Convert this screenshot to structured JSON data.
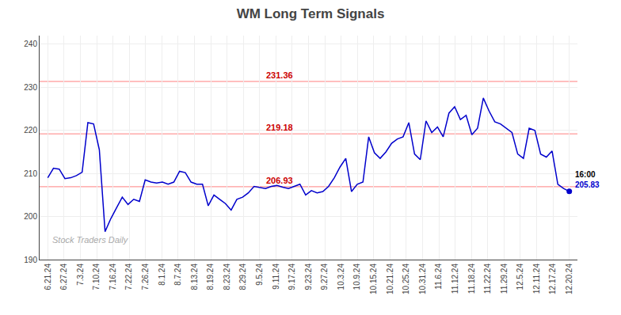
{
  "chart_data": {
    "type": "line",
    "title": "WM Long Term Signals",
    "xlim": [
      -0.5,
      32.5
    ],
    "xticks": [
      {
        "value": 0,
        "label": "6.21.24"
      },
      {
        "value": 1,
        "label": "6.27.24"
      },
      {
        "value": 2,
        "label": "7.3.24"
      },
      {
        "value": 3,
        "label": "7.10.24"
      },
      {
        "value": 4,
        "label": "7.16.24"
      },
      {
        "value": 5,
        "label": "7.22.24"
      },
      {
        "value": 6,
        "label": "7.26.24"
      },
      {
        "value": 7,
        "label": "8.1.24"
      },
      {
        "value": 8,
        "label": "8.7.24"
      },
      {
        "value": 9,
        "label": "8.13.24"
      },
      {
        "value": 10,
        "label": "8.19.24"
      },
      {
        "value": 11,
        "label": "8.23.24"
      },
      {
        "value": 12,
        "label": "8.29.24"
      },
      {
        "value": 13,
        "label": "9.5.24"
      },
      {
        "value": 14,
        "label": "9.11.24"
      },
      {
        "value": 15,
        "label": "9.17.24"
      },
      {
        "value": 16,
        "label": "9.23.24"
      },
      {
        "value": 17,
        "label": "9.27.24"
      },
      {
        "value": 18,
        "label": "10.3.24"
      },
      {
        "value": 19,
        "label": "10.9.24"
      },
      {
        "value": 20,
        "label": "10.15.24"
      },
      {
        "value": 21,
        "label": "10.21.24"
      },
      {
        "value": 22,
        "label": "10.25.24"
      },
      {
        "value": 23,
        "label": "10.31.24"
      },
      {
        "value": 24,
        "label": "11.6.24"
      },
      {
        "value": 25,
        "label": "11.12.24"
      },
      {
        "value": 26,
        "label": "11.18.24"
      },
      {
        "value": 27,
        "label": "11.22.24"
      },
      {
        "value": 28,
        "label": "11.29.24"
      },
      {
        "value": 29,
        "label": "12.5.24"
      },
      {
        "value": 30,
        "label": "12.11.24"
      },
      {
        "value": 31,
        "label": "12.17.24"
      },
      {
        "value": 32,
        "label": "12.20.24"
      }
    ],
    "ylim": [
      190,
      242
    ],
    "yticks": [
      190,
      200,
      210,
      220,
      230,
      240
    ],
    "grid": true,
    "series": [
      {
        "color": "#0000cc",
        "x": [
          0,
          0.3516,
          0.7033,
          1.0549,
          1.4066,
          1.7582,
          2.1099,
          2.4615,
          2.8132,
          3.1648,
          3.5165,
          3.8681,
          4.2198,
          4.5714,
          4.9231,
          5.2747,
          5.6264,
          5.978,
          6.3297,
          6.6813,
          7.033,
          7.3846,
          7.7363,
          8.0879,
          8.4396,
          8.7912,
          9.1429,
          9.4945,
          9.8462,
          10.1978,
          10.5495,
          10.9011,
          11.2527,
          11.6044,
          11.956,
          12.3077,
          12.6593,
          13.011,
          13.3626,
          13.7143,
          14.0659,
          14.4176,
          14.7692,
          15.1209,
          15.4725,
          15.8242,
          16.1758,
          16.5275,
          16.8791,
          17.2308,
          17.5824,
          17.9341,
          18.2857,
          18.6374,
          18.989,
          19.3407,
          19.6923,
          20.044,
          20.3956,
          20.7473,
          21.0989,
          21.4505,
          21.8022,
          22.1538,
          22.5055,
          22.8571,
          23.2088,
          23.5604,
          23.9121,
          24.2637,
          24.6154,
          24.967,
          25.3187,
          25.6703,
          26.022,
          26.3736,
          26.7253,
          27.0769,
          27.4286,
          27.7802,
          28.1319,
          28.4835,
          28.8352,
          29.1868,
          29.5385,
          29.8901,
          30.2418,
          30.5934,
          30.9451,
          31.2967,
          31.6484,
          32
        ],
        "values": [
          209.0,
          211.2,
          211.0,
          208.8,
          209.0,
          209.5,
          210.3,
          221.8,
          221.5,
          215.5,
          196.5,
          199.5,
          202.0,
          204.5,
          202.8,
          204.0,
          203.5,
          208.5,
          208.0,
          207.8,
          208.0,
          207.5,
          208.0,
          210.5,
          210.2,
          208.0,
          207.5,
          207.5,
          202.5,
          205.0,
          204.0,
          203.0,
          201.5,
          204.0,
          204.5,
          205.5,
          207.0,
          206.8,
          206.5,
          207.0,
          207.2,
          206.8,
          206.5,
          207.0,
          207.5,
          205.0,
          206.0,
          205.5,
          205.8,
          207.0,
          209.0,
          211.5,
          213.5,
          205.8,
          207.5,
          208.0,
          218.5,
          214.8,
          213.5,
          215.0,
          217.0,
          218.0,
          218.5,
          221.8,
          214.5,
          213.2,
          222.2,
          219.5,
          220.8,
          218.5,
          224.0,
          225.5,
          222.5,
          223.5,
          219.0,
          220.5,
          227.5,
          224.5,
          222.0,
          221.5,
          220.5,
          219.5,
          214.5,
          213.5,
          220.5,
          220.0,
          214.5,
          213.8,
          215.2,
          207.5,
          206.5,
          205.83
        ]
      }
    ],
    "hlines": [
      {
        "value": 231.36,
        "label": "231.36",
        "color": "#ff9999"
      },
      {
        "value": 219.18,
        "label": "219.18",
        "color": "#ff9999"
      },
      {
        "value": 206.93,
        "label": "206.93",
        "color": "#ff9999"
      }
    ],
    "annotations": [
      {
        "text": "16:00",
        "color": "#000000"
      },
      {
        "text": "205.83",
        "color": "#0000cc"
      }
    ],
    "watermark": "Stock Traders Daily"
  }
}
